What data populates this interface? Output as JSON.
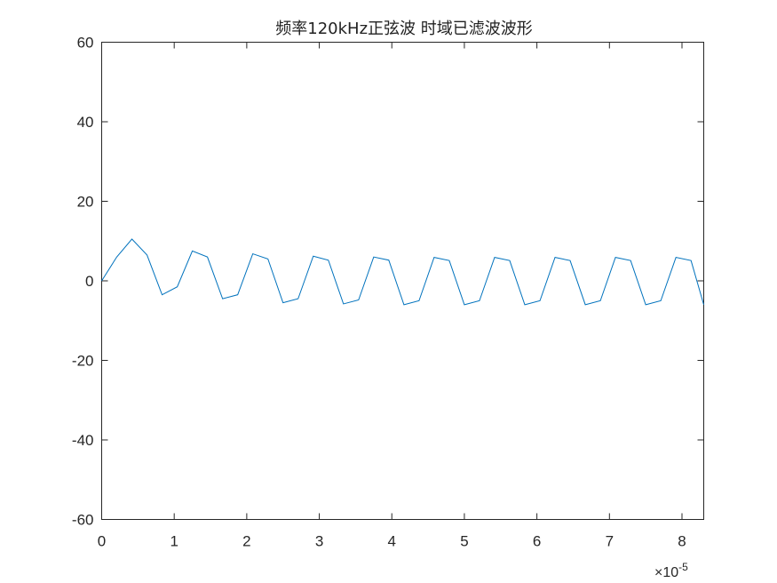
{
  "chart_data": {
    "type": "line",
    "title": "频率120kHz正弦波 时域已滤波波形",
    "xlabel": "",
    "ylabel": "",
    "xlim": [
      0,
      8.3
    ],
    "ylim": [
      -60,
      60
    ],
    "x_multiplier_label": "×10",
    "x_multiplier_exponent": "-5",
    "xticks": [
      0,
      1,
      2,
      3,
      4,
      5,
      6,
      7,
      8
    ],
    "xtick_labels": [
      "0",
      "1",
      "2",
      "3",
      "4",
      "5",
      "6",
      "7",
      "8"
    ],
    "yticks": [
      60,
      40,
      20,
      0,
      -20,
      -40,
      -60
    ],
    "ytick_labels": [
      "60",
      "40",
      "20",
      "0",
      "-20",
      "-40",
      "-60"
    ],
    "grid": false,
    "series": [
      {
        "color": "#0072bd",
        "x": [
          0,
          0.208,
          0.417,
          0.625,
          0.833,
          1.042,
          1.25,
          1.458,
          1.667,
          1.875,
          2.083,
          2.292,
          2.5,
          2.708,
          2.917,
          3.125,
          3.333,
          3.542,
          3.75,
          3.958,
          4.167,
          4.375,
          4.583,
          4.792,
          5.0,
          5.208,
          5.417,
          5.625,
          5.833,
          6.042,
          6.25,
          6.458,
          6.667,
          6.875,
          7.083,
          7.292,
          7.5,
          7.708,
          7.917,
          8.125,
          8.3
        ],
        "y": [
          0.0,
          6.0,
          10.5,
          6.5,
          -3.5,
          -1.5,
          7.5,
          6.0,
          -4.5,
          -3.5,
          6.8,
          5.5,
          -5.5,
          -4.5,
          6.2,
          5.2,
          -5.8,
          -4.8,
          6.0,
          5.2,
          -6.0,
          -5.0,
          5.9,
          5.1,
          -6.0,
          -5.0,
          5.9,
          5.1,
          -6.0,
          -5.0,
          5.9,
          5.1,
          -6.0,
          -5.0,
          5.9,
          5.1,
          -6.0,
          -5.0,
          5.9,
          5.1,
          -6.0
        ]
      }
    ]
  }
}
